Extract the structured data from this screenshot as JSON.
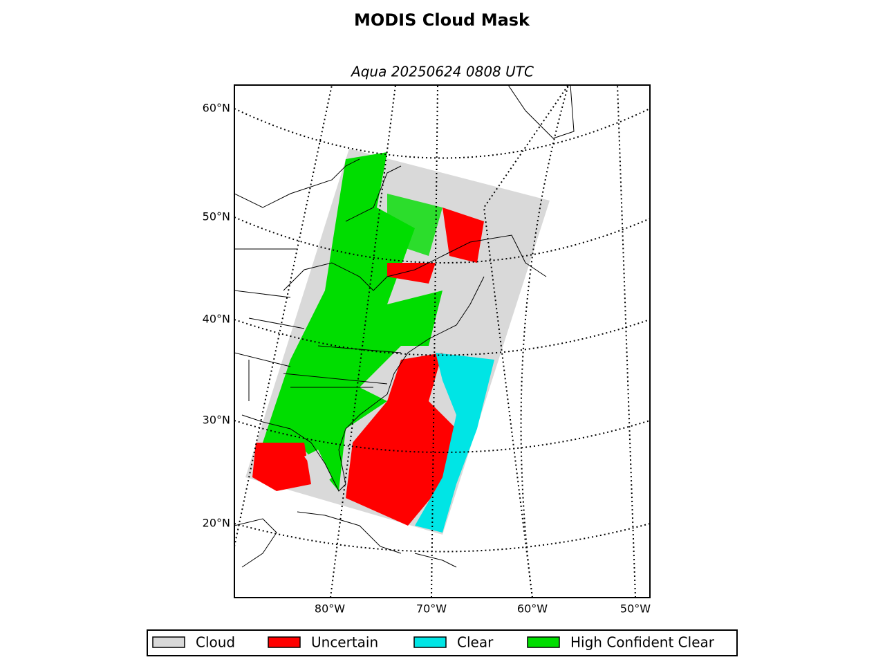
{
  "title": "MODIS Cloud Mask",
  "subtitle": "Aqua 20250624 0808 UTC",
  "lat_labels": [
    "60°N",
    "50°N",
    "40°N",
    "30°N",
    "20°N"
  ],
  "lon_labels": [
    "80°W",
    "70°W",
    "60°W",
    "50°W"
  ],
  "legend": [
    {
      "label": "Cloud",
      "color": "#d9d9d9"
    },
    {
      "label": "Uncertain",
      "color": "#ff0000"
    },
    {
      "label": "Clear",
      "color": "#00e5e5"
    },
    {
      "label": "High Confident Clear",
      "color": "#00dd00"
    }
  ]
}
